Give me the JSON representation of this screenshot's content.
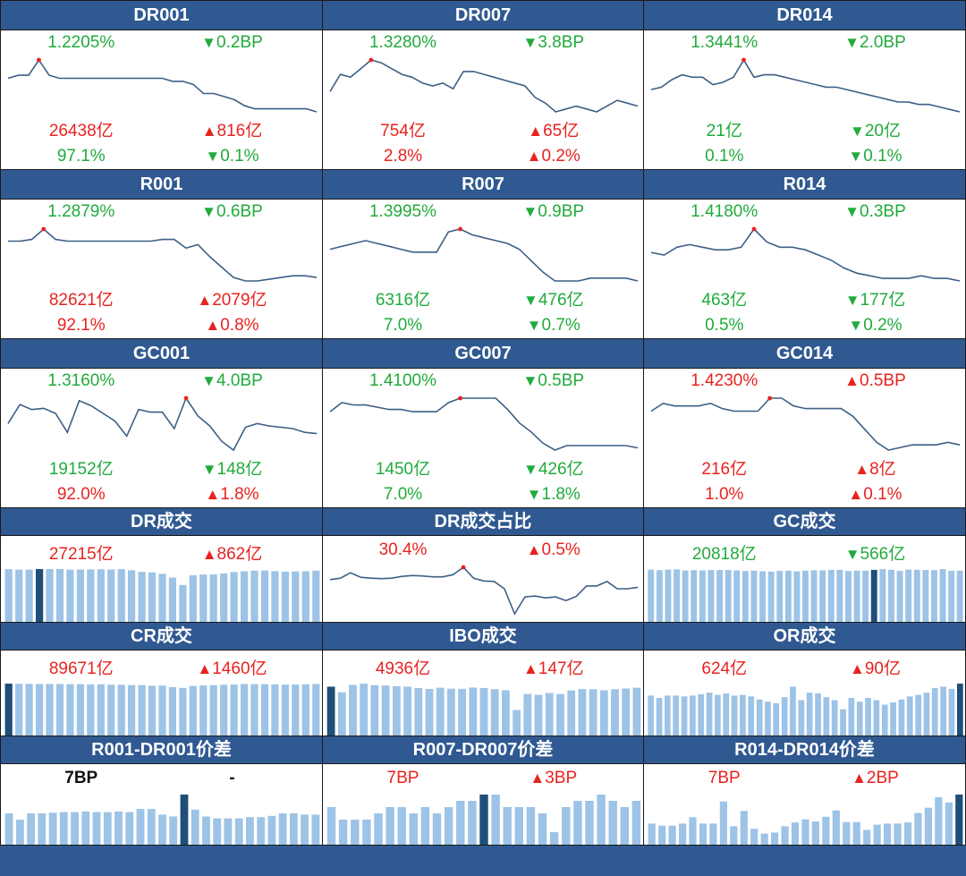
{
  "colors": {
    "header_bg": "#305991",
    "up": "#e8231f",
    "down": "#21ab3c",
    "line": "#3d5f86",
    "bar": "#9dc3e6",
    "bar_hl": "#1f4e79",
    "peak": "#e8231f"
  },
  "rate_cells": [
    {
      "title": "DR001",
      "rate": "1.2205%",
      "rate_color": "down",
      "rate_chg": "0.2BP",
      "rate_dir": "down",
      "vol": "26438亿",
      "vol_color": "up",
      "vol_chg": "816亿",
      "vol_dir": "up",
      "pct": "97.1%",
      "pct_color": "down",
      "pct_chg": "0.1%",
      "pct_dir": "down"
    },
    {
      "title": "DR007",
      "rate": "1.3280%",
      "rate_color": "down",
      "rate_chg": "3.8BP",
      "rate_dir": "down",
      "vol": "754亿",
      "vol_color": "up",
      "vol_chg": "65亿",
      "vol_dir": "up",
      "pct": "2.8%",
      "pct_color": "up",
      "pct_chg": "0.2%",
      "pct_dir": "up"
    },
    {
      "title": "DR014",
      "rate": "1.3441%",
      "rate_color": "down",
      "rate_chg": "2.0BP",
      "rate_dir": "down",
      "vol": "21亿",
      "vol_color": "down",
      "vol_chg": "20亿",
      "vol_dir": "down",
      "pct": "0.1%",
      "pct_color": "down",
      "pct_chg": "0.1%",
      "pct_dir": "down"
    },
    {
      "title": "R001",
      "rate": "1.2879%",
      "rate_color": "down",
      "rate_chg": "0.6BP",
      "rate_dir": "down",
      "vol": "82621亿",
      "vol_color": "up",
      "vol_chg": "2079亿",
      "vol_dir": "up",
      "pct": "92.1%",
      "pct_color": "up",
      "pct_chg": "0.8%",
      "pct_dir": "up"
    },
    {
      "title": "R007",
      "rate": "1.3995%",
      "rate_color": "down",
      "rate_chg": "0.9BP",
      "rate_dir": "down",
      "vol": "6316亿",
      "vol_color": "down",
      "vol_chg": "476亿",
      "vol_dir": "down",
      "pct": "7.0%",
      "pct_color": "down",
      "pct_chg": "0.7%",
      "pct_dir": "down"
    },
    {
      "title": "R014",
      "rate": "1.4180%",
      "rate_color": "down",
      "rate_chg": "0.3BP",
      "rate_dir": "down",
      "vol": "463亿",
      "vol_color": "down",
      "vol_chg": "177亿",
      "vol_dir": "down",
      "pct": "0.5%",
      "pct_color": "down",
      "pct_chg": "0.2%",
      "pct_dir": "down"
    },
    {
      "title": "GC001",
      "rate": "1.3160%",
      "rate_color": "down",
      "rate_chg": "4.0BP",
      "rate_dir": "down",
      "vol": "19152亿",
      "vol_color": "down",
      "vol_chg": "148亿",
      "vol_dir": "down",
      "pct": "92.0%",
      "pct_color": "up",
      "pct_chg": "1.8%",
      "pct_dir": "up"
    },
    {
      "title": "GC007",
      "rate": "1.4100%",
      "rate_color": "down",
      "rate_chg": "0.5BP",
      "rate_dir": "down",
      "vol": "1450亿",
      "vol_color": "down",
      "vol_chg": "426亿",
      "vol_dir": "down",
      "pct": "7.0%",
      "pct_color": "down",
      "pct_chg": "1.8%",
      "pct_dir": "down"
    },
    {
      "title": "GC014",
      "rate": "1.4230%",
      "rate_color": "up",
      "rate_chg": "0.5BP",
      "rate_dir": "up",
      "vol": "216亿",
      "vol_color": "up",
      "vol_chg": "8亿",
      "vol_dir": "up",
      "pct": "1.0%",
      "pct_color": "up",
      "pct_chg": "0.1%",
      "pct_dir": "up"
    }
  ],
  "volume_cells": [
    {
      "title": "DR成交",
      "val": "27215亿",
      "val_color": "up",
      "chg": "862亿",
      "chg_dir": "up"
    },
    {
      "title": "DR成交占比",
      "val": "30.4%",
      "val_color": "up",
      "chg": "0.5%",
      "chg_dir": "up"
    },
    {
      "title": "GC成交",
      "val": "20818亿",
      "val_color": "down",
      "chg": "566亿",
      "chg_dir": "down"
    },
    {
      "title": "CR成交",
      "val": "89671亿",
      "val_color": "up",
      "chg": "1460亿",
      "chg_dir": "up"
    },
    {
      "title": "IBO成交",
      "val": "4936亿",
      "val_color": "up",
      "chg": "147亿",
      "chg_dir": "up"
    },
    {
      "title": "OR成交",
      "val": "624亿",
      "val_color": "up",
      "chg": "90亿",
      "chg_dir": "up"
    }
  ],
  "spread_cells": [
    {
      "title": "R001-DR001价差",
      "val": "7BP",
      "val_color": "neutral",
      "chg": "-",
      "chg_dir": "none"
    },
    {
      "title": "R007-DR007价差",
      "val": "7BP",
      "val_color": "up",
      "chg": "3BP",
      "chg_dir": "up"
    },
    {
      "title": "R014-DR014价差",
      "val": "7BP",
      "val_color": "up",
      "chg": "2BP",
      "chg_dir": "up"
    }
  ],
  "chart_data": [
    {
      "type": "line",
      "title": "DR001",
      "values": [
        1.28,
        1.29,
        1.29,
        1.34,
        1.29,
        1.28,
        1.28,
        1.28,
        1.28,
        1.28,
        1.28,
        1.28,
        1.28,
        1.28,
        1.28,
        1.28,
        1.27,
        1.27,
        1.26,
        1.23,
        1.23,
        1.22,
        1.21,
        1.19,
        1.18,
        1.18,
        1.18,
        1.18,
        1.18,
        1.18,
        1.17
      ],
      "peak_index": 3
    },
    {
      "type": "line",
      "title": "DR007",
      "values": [
        1.37,
        1.43,
        1.42,
        1.45,
        1.48,
        1.47,
        1.45,
        1.43,
        1.42,
        1.4,
        1.39,
        1.4,
        1.38,
        1.44,
        1.44,
        1.43,
        1.42,
        1.41,
        1.4,
        1.39,
        1.35,
        1.33,
        1.3,
        1.31,
        1.32,
        1.31,
        1.3,
        1.32,
        1.34,
        1.33,
        1.32
      ],
      "peak_index": 4
    },
    {
      "type": "line",
      "title": "DR014",
      "values": [
        1.38,
        1.39,
        1.42,
        1.44,
        1.43,
        1.43,
        1.4,
        1.41,
        1.43,
        1.5,
        1.43,
        1.44,
        1.44,
        1.43,
        1.42,
        1.41,
        1.4,
        1.39,
        1.39,
        1.38,
        1.37,
        1.36,
        1.35,
        1.34,
        1.33,
        1.33,
        1.32,
        1.32,
        1.31,
        1.3,
        1.29
      ],
      "peak_index": 9
    },
    {
      "type": "line",
      "title": "R001",
      "values": [
        1.33,
        1.33,
        1.34,
        1.4,
        1.34,
        1.33,
        1.33,
        1.33,
        1.33,
        1.33,
        1.33,
        1.33,
        1.33,
        1.34,
        1.34,
        1.29,
        1.31,
        1.24,
        1.18,
        1.12,
        1.1,
        1.1,
        1.11,
        1.12,
        1.13,
        1.13,
        1.12
      ],
      "peak_index": 3
    },
    {
      "type": "line",
      "title": "R007",
      "values": [
        1.46,
        1.47,
        1.48,
        1.49,
        1.48,
        1.47,
        1.46,
        1.45,
        1.45,
        1.45,
        1.52,
        1.53,
        1.51,
        1.5,
        1.49,
        1.48,
        1.46,
        1.42,
        1.38,
        1.35,
        1.35,
        1.35,
        1.36,
        1.36,
        1.36,
        1.36,
        1.35
      ],
      "peak_index": 11
    },
    {
      "type": "line",
      "title": "R014",
      "values": [
        1.47,
        1.46,
        1.49,
        1.5,
        1.49,
        1.48,
        1.48,
        1.49,
        1.56,
        1.51,
        1.49,
        1.49,
        1.48,
        1.46,
        1.44,
        1.41,
        1.39,
        1.38,
        1.37,
        1.37,
        1.37,
        1.38,
        1.37,
        1.37,
        1.36
      ],
      "peak_index": 8
    },
    {
      "type": "line",
      "title": "GC001",
      "values": [
        1.25,
        1.4,
        1.36,
        1.37,
        1.33,
        1.18,
        1.43,
        1.39,
        1.33,
        1.27,
        1.15,
        1.36,
        1.34,
        1.34,
        1.21,
        1.45,
        1.31,
        1.23,
        1.11,
        1.04,
        1.22,
        1.25,
        1.23,
        1.22,
        1.21,
        1.18,
        1.17
      ],
      "peak_index": 15
    },
    {
      "type": "line",
      "title": "GC007",
      "values": [
        1.4,
        1.44,
        1.43,
        1.43,
        1.42,
        1.41,
        1.41,
        1.4,
        1.4,
        1.4,
        1.44,
        1.46,
        1.46,
        1.46,
        1.46,
        1.41,
        1.35,
        1.31,
        1.26,
        1.23,
        1.25,
        1.25,
        1.25,
        1.25,
        1.25,
        1.25,
        1.24
      ],
      "peak_index": 11
    },
    {
      "type": "line",
      "title": "GC014",
      "values": [
        1.4,
        1.43,
        1.42,
        1.42,
        1.42,
        1.43,
        1.41,
        1.4,
        1.4,
        1.4,
        1.45,
        1.45,
        1.42,
        1.41,
        1.41,
        1.41,
        1.41,
        1.38,
        1.33,
        1.28,
        1.25,
        1.26,
        1.27,
        1.27,
        1.27,
        1.28,
        1.27
      ],
      "peak_index": 10
    },
    {
      "type": "bar",
      "title": "DR成交",
      "values": [
        23640,
        23420,
        23430,
        23680,
        23680,
        23660,
        23400,
        23470,
        23500,
        23600,
        23520,
        23640,
        23120,
        22450,
        22180,
        21560,
        19850,
        16550,
        20950,
        21250,
        21330,
        21730,
        22350,
        22660,
        23000,
        23040,
        22750,
        22570,
        22630,
        22690,
        23000
      ],
      "highlight_index": 3
    },
    {
      "type": "line",
      "title": "DR成交占比",
      "values": [
        27.0,
        27.3,
        28.5,
        27.5,
        27.3,
        27.2,
        27.3,
        27.7,
        27.9,
        27.8,
        27.6,
        27.6,
        28.1,
        29.7,
        27.3,
        26.7,
        26.6,
        25.0,
        19.5,
        23.2,
        23.4,
        23.0,
        23.2,
        22.4,
        23.3,
        25.6,
        25.6,
        26.6,
        25.0,
        25.0,
        25.3
      ],
      "peak_index": 13
    },
    {
      "type": "bar",
      "title": "GC成交",
      "values": [
        21600,
        21370,
        21600,
        21700,
        21240,
        21370,
        21280,
        21440,
        21430,
        21440,
        21260,
        21050,
        21150,
        20890,
        20810,
        21070,
        21150,
        20920,
        21150,
        21350,
        21310,
        21490,
        21520,
        21050,
        21210,
        21160,
        21490,
        21830,
        21520,
        21070,
        21650,
        21550,
        21470,
        21380,
        21820,
        21120,
        21200
      ],
      "highlight_index": 26
    },
    {
      "type": "bar",
      "title": "CR成交",
      "values": [
        91200,
        90900,
        90750,
        90600,
        90500,
        90500,
        90300,
        90200,
        89800,
        89900,
        89300,
        89200,
        88700,
        88500,
        87500,
        87700,
        85000,
        83700,
        87100,
        88100,
        88600,
        89300,
        89700,
        90400,
        90300,
        90200,
        89900,
        89500,
        89700,
        90100,
        90500
      ],
      "highlight_index": 0
    },
    {
      "type": "bar",
      "title": "IBO成交",
      "values": [
        5200,
        4600,
        5380,
        5520,
        5360,
        5320,
        5240,
        5200,
        5040,
        4960,
        5080,
        4980,
        4960,
        5100,
        5050,
        4930,
        4820,
        2700,
        4420,
        4320,
        4520,
        4420,
        4800,
        4940,
        4920,
        4820,
        4920,
        5000,
        5080
      ],
      "highlight_index": 0
    },
    {
      "type": "bar",
      "title": "OR成交",
      "values": [
        530,
        500,
        530,
        530,
        520,
        530,
        550,
        570,
        540,
        560,
        530,
        540,
        520,
        480,
        450,
        430,
        510,
        650,
        470,
        570,
        560,
        510,
        470,
        350,
        500,
        450,
        500,
        470,
        410,
        440,
        480,
        520,
        540,
        570,
        630,
        650,
        620,
        690
      ],
      "highlight_index": 37
    },
    {
      "type": "bar",
      "title": "R001-DR001价差",
      "values": [
        5.0,
        4.0,
        5.0,
        5.0,
        5.1,
        5.2,
        5.2,
        5.3,
        5.2,
        5.2,
        5.3,
        5.2,
        5.7,
        5.7,
        4.8,
        4.5,
        8.0,
        5.6,
        4.5,
        4.2,
        4.2,
        4.2,
        4.4,
        4.4,
        4.6,
        5.0,
        5.0,
        4.8,
        4.8
      ],
      "highlight_index": 16
    },
    {
      "type": "bar",
      "title": "R007-DR007价差",
      "values": [
        6.0,
        4.0,
        4.0,
        4.0,
        5.0,
        6.0,
        6.0,
        5.0,
        6.0,
        5.0,
        6.0,
        7.0,
        7.0,
        8.0,
        8.0,
        6.0,
        6.0,
        6.0,
        5.0,
        2.0,
        6.0,
        7.0,
        7.0,
        8.0,
        7.0,
        6.0,
        7.0
      ],
      "highlight_index": 13
    },
    {
      "type": "bar",
      "title": "R014-DR014价差",
      "values": [
        4.0,
        3.6,
        3.6,
        4.0,
        5.2,
        4.0,
        4.0,
        8.2,
        3.5,
        6.4,
        3.0,
        2.1,
        2.3,
        3.5,
        4.2,
        4.8,
        4.4,
        5.3,
        6.5,
        4.3,
        4.3,
        2.8,
        3.8,
        4.0,
        4.0,
        4.2,
        6.0,
        7.0,
        9.0,
        8.0,
        9.5
      ],
      "highlight_index": 30
    }
  ]
}
